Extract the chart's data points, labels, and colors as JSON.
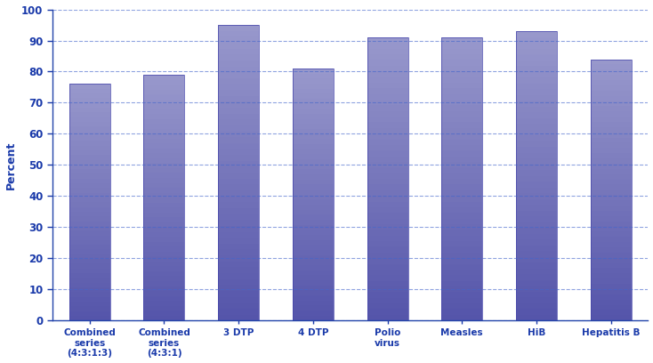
{
  "categories": [
    "Combined\nseries\n(4:3:1:3)",
    "Combined\nseries\n(4:3:1)",
    "3 DTP",
    "4 DTP",
    "Polio\nvirus",
    "Measles",
    "HiB",
    "Hepatitis B"
  ],
  "values": [
    76,
    79,
    95,
    81,
    91,
    91,
    93,
    84
  ],
  "bar_color_top": "#9999cc",
  "bar_color_bottom": "#5555aa",
  "bar_edge_color": "#4444aa",
  "ylabel": "Percent",
  "ylim": [
    0,
    100
  ],
  "yticks": [
    0,
    10,
    20,
    30,
    40,
    50,
    60,
    70,
    80,
    90,
    100
  ],
  "grid_color": "#4466cc",
  "axis_color": "#2244aa",
  "tick_color": "#1a3aaa",
  "label_color": "#1a3aaa",
  "background_color": "#ffffff",
  "bar_width": 0.55,
  "ylabel_fontsize": 9,
  "xlabel_fontsize": 7.5,
  "ytick_fontsize": 8.5
}
